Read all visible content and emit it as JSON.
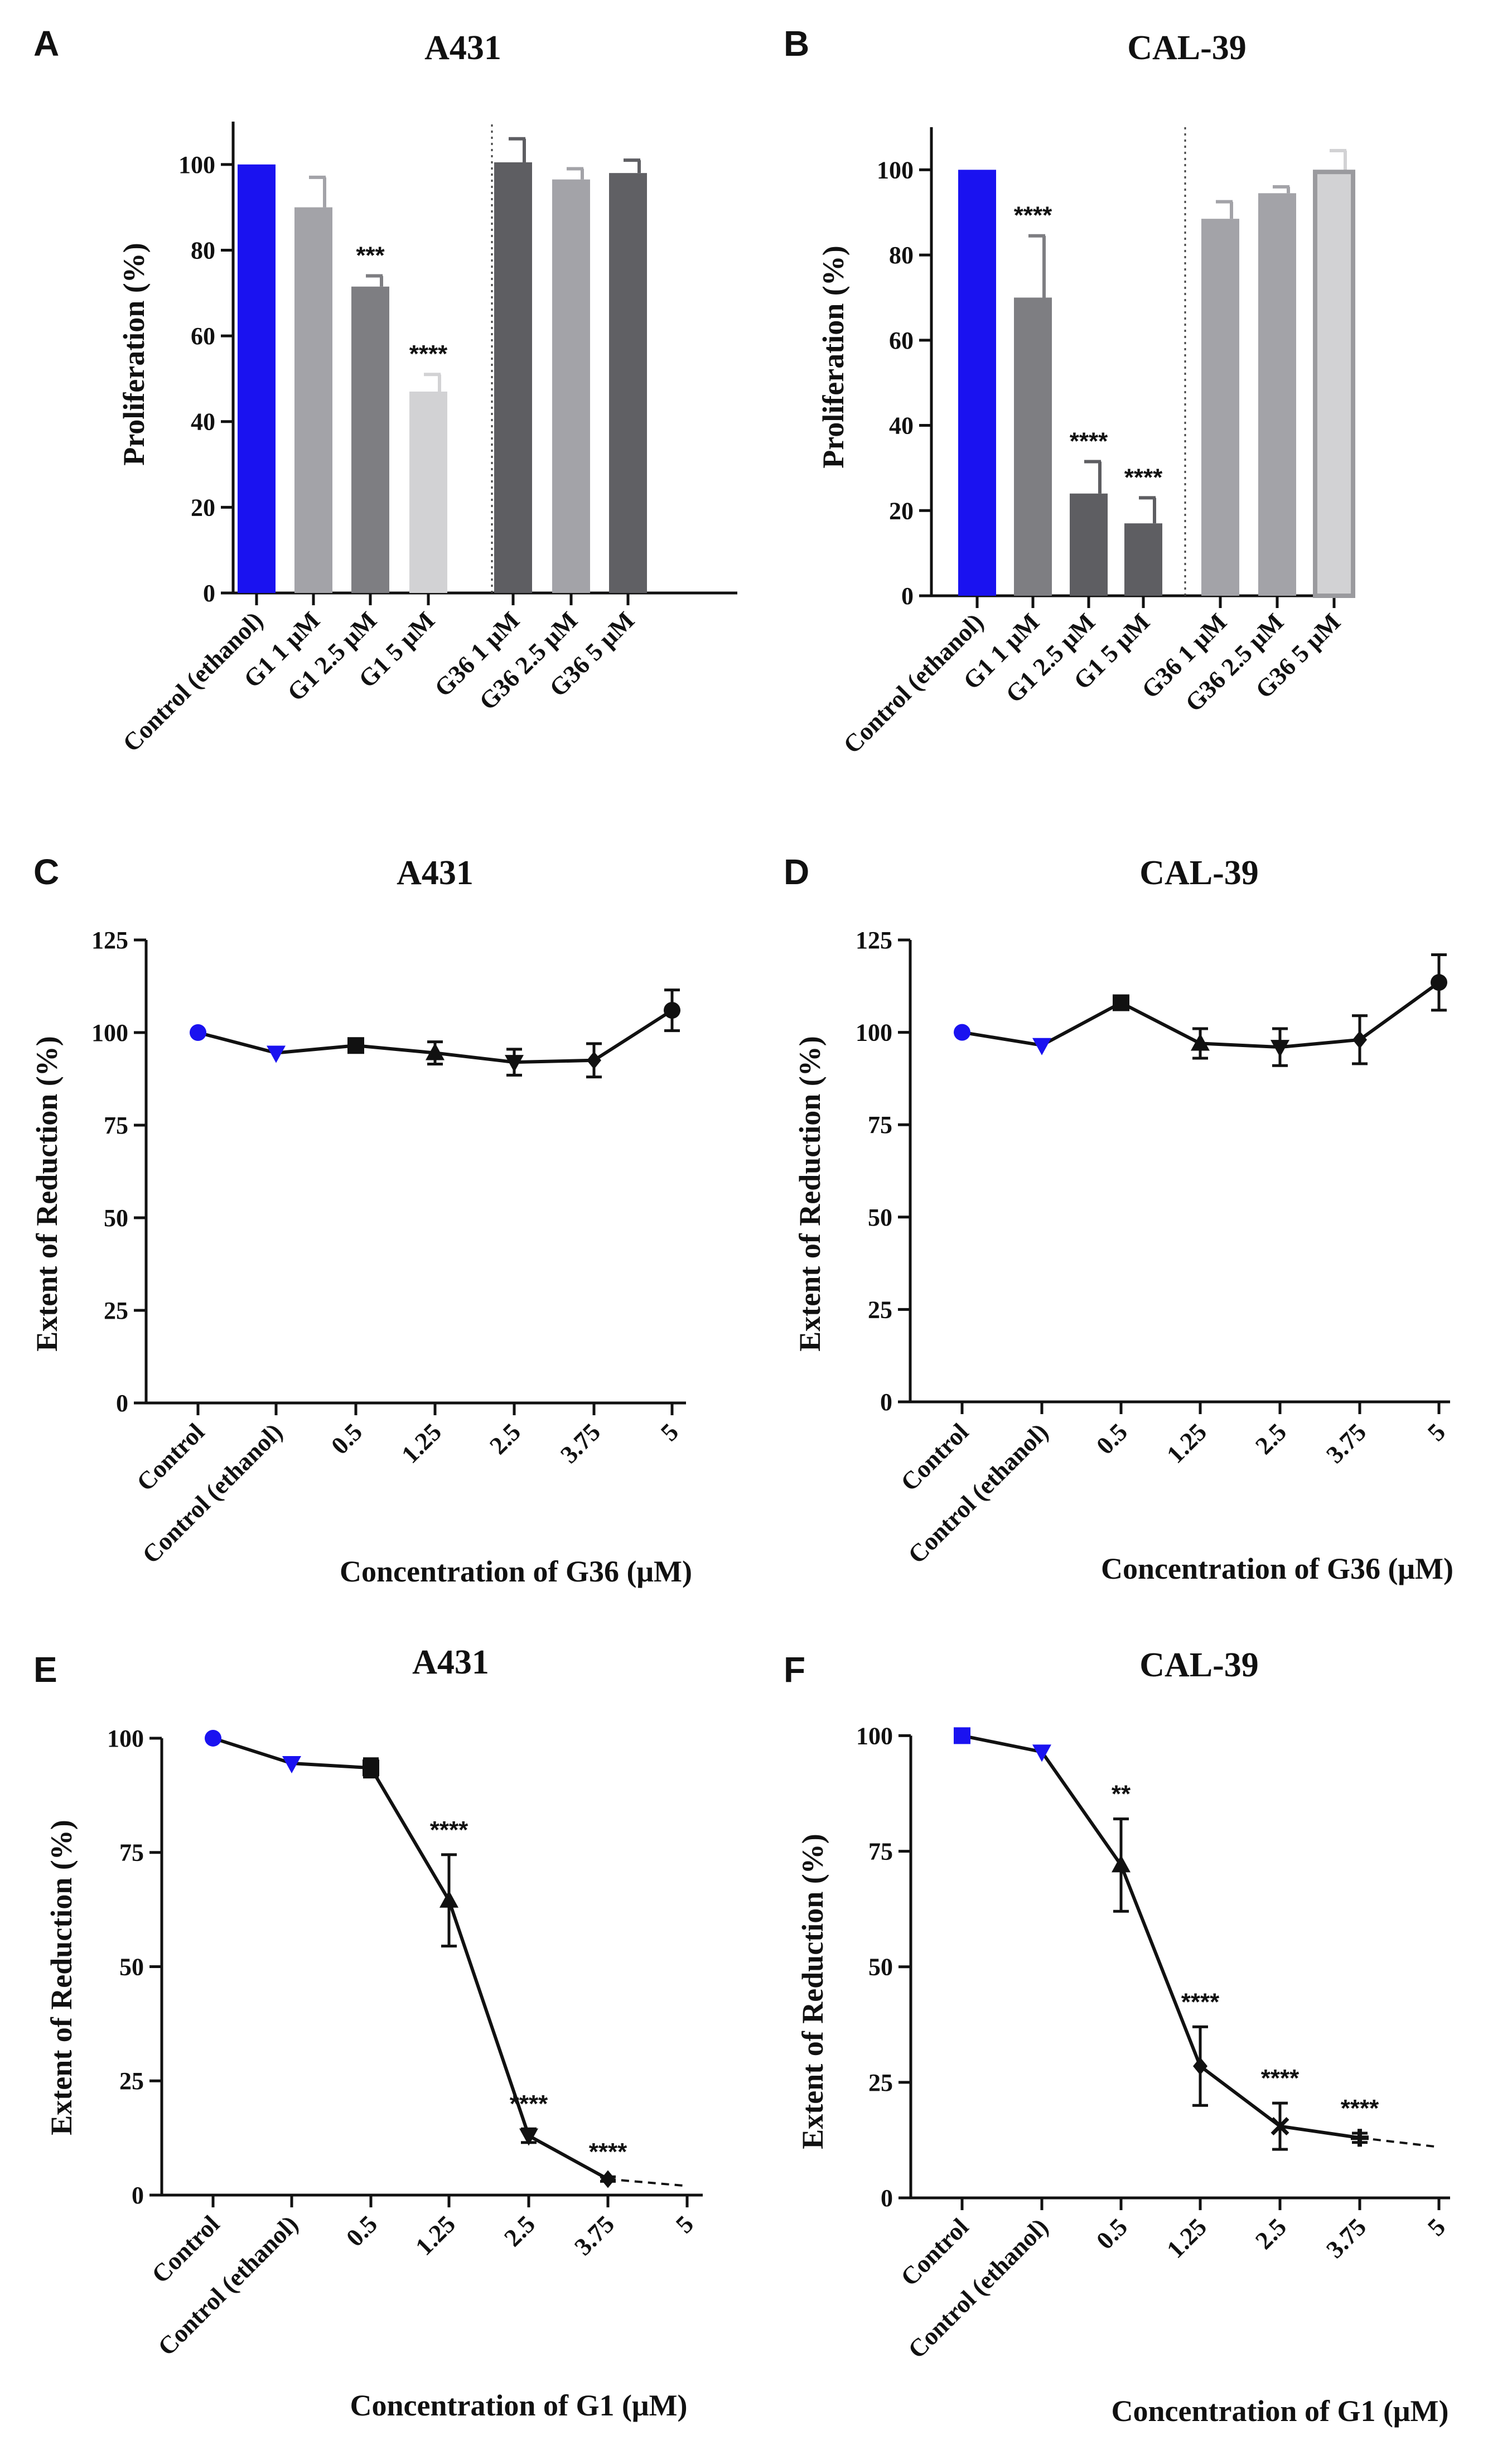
{
  "panel_letters": [
    "A",
    "B",
    "C",
    "D",
    "E",
    "F"
  ],
  "chart_data": [
    {
      "id": "A",
      "type": "bar",
      "title": "A431",
      "xlabel": "",
      "ylabel": "Proliferation (%)",
      "ylim": [
        0,
        110
      ],
      "yticks": [
        0,
        20,
        40,
        60,
        80,
        100
      ],
      "categories": [
        "Control (ethanol)",
        "G1 1 μM",
        "G1 2.5 μM",
        "G1 5 μM",
        "G36 1 μM",
        "G36 2.5 μM",
        "G36 5 μM"
      ],
      "values": [
        100,
        90,
        71.5,
        47,
        100.5,
        96.5,
        98
      ],
      "errors": [
        0,
        7,
        2.5,
        4,
        5.5,
        2.5,
        3
      ],
      "colors": [
        "#1a12f0",
        "#a3a3a8",
        "#7e7e82",
        "#d2d2d4",
        "#5e5e62",
        "#a3a3a8",
        "#606064"
      ],
      "significance": [
        "",
        "",
        "***",
        "****",
        "",
        "",
        ""
      ],
      "separator_after_index": 3
    },
    {
      "id": "B",
      "type": "bar",
      "title": "CAL-39",
      "xlabel": "",
      "ylabel": "Proliferation (%)",
      "ylim": [
        0,
        110
      ],
      "yticks": [
        0,
        20,
        40,
        60,
        80,
        100
      ],
      "categories": [
        "Control (ethanol)",
        "G1 1 μM",
        "G1 2.5 μM",
        "G1 5 μM",
        "G36 1 μM",
        "G36 2.5 μM",
        "G36 5 μM"
      ],
      "values": [
        100,
        70,
        24,
        17,
        88.5,
        94.5,
        99.5
      ],
      "errors": [
        0,
        14.5,
        7.5,
        6,
        4,
        1.5,
        5
      ],
      "colors": [
        "#1a12f0",
        "#7e7e82",
        "#5e5e62",
        "#5e5e62",
        "#a3a3a8",
        "#a3a3a8",
        "#d2d2d4"
      ],
      "significance": [
        "",
        "****",
        "****",
        "****",
        "",
        "",
        ""
      ],
      "separator_after_index": 3
    },
    {
      "id": "C",
      "type": "line",
      "title": "A431",
      "xlabel": "Concentration of G36 (μM)",
      "ylabel": "Extent of Reduction (%)",
      "ylim": [
        0,
        125
      ],
      "yticks": [
        0,
        25,
        50,
        75,
        100,
        125
      ],
      "categories": [
        "Control",
        "Control (ethanol)",
        "0.5",
        "1.25",
        "2.5",
        "3.75",
        "5"
      ],
      "values": [
        100,
        94.5,
        96.5,
        94.5,
        92,
        92.5,
        106
      ],
      "errors": [
        0,
        0,
        1.5,
        3,
        3.5,
        4.5,
        5.5
      ],
      "markers": [
        "circle",
        "triangle-down",
        "square",
        "triangle-up",
        "triangle-down",
        "diamond",
        "circle"
      ],
      "colors": [
        "#1a12f0",
        "#1a12f0",
        "#111111",
        "#111111",
        "#111111",
        "#111111",
        "#111111"
      ],
      "significance": [
        "",
        "",
        "",
        "",
        "",
        "",
        ""
      ],
      "dashed_tail": null
    },
    {
      "id": "D",
      "type": "line",
      "title": "CAL-39",
      "xlabel": "Concentration of G36 (μM)",
      "ylabel": "Extent of Reduction (%)",
      "ylim": [
        0,
        125
      ],
      "yticks": [
        0,
        25,
        50,
        75,
        100,
        125
      ],
      "categories": [
        "Control",
        "Control (ethanol)",
        "0.5",
        "1.25",
        "2.5",
        "3.75",
        "5"
      ],
      "values": [
        100,
        96.5,
        108,
        97,
        96,
        98,
        113.5
      ],
      "errors": [
        0,
        0,
        1.5,
        4,
        5,
        6.5,
        7.5
      ],
      "markers": [
        "circle",
        "triangle-down",
        "square",
        "triangle-up",
        "triangle-down",
        "diamond",
        "circle"
      ],
      "colors": [
        "#1a12f0",
        "#1a12f0",
        "#111111",
        "#111111",
        "#111111",
        "#111111",
        "#111111"
      ],
      "significance": [
        "",
        "",
        "",
        "",
        "",
        "",
        ""
      ],
      "dashed_tail": null
    },
    {
      "id": "E",
      "type": "line",
      "title": "A431",
      "xlabel": "Concentration of G1 (μM)",
      "ylabel": "Extent of Reduction (%)",
      "ylim": [
        0,
        105
      ],
      "yticks": [
        0,
        25,
        50,
        75,
        100
      ],
      "categories": [
        "Control",
        "Control (ethanol)",
        "0.5",
        "1.25",
        "2.5",
        "3.75",
        "5"
      ],
      "values": [
        100,
        94.5,
        93.5,
        64.5,
        13,
        3.5,
        null
      ],
      "errors": [
        0,
        0,
        2,
        10,
        1.5,
        0.5,
        0
      ],
      "markers": [
        "circle",
        "triangle-down",
        "square",
        "triangle-up",
        "triangle-down",
        "diamond",
        "none"
      ],
      "colors": [
        "#1a12f0",
        "#1a12f0",
        "#111111",
        "#111111",
        "#111111",
        "#111111",
        "#111111"
      ],
      "significance": [
        "",
        "",
        "",
        "****",
        "****",
        "****",
        ""
      ],
      "dashed_tail": [
        3.5,
        2
      ]
    },
    {
      "id": "F",
      "type": "line",
      "title": "CAL-39",
      "xlabel": "Concentration of G1 (μM)",
      "ylabel": "Extent of Reduction (%)",
      "ylim": [
        0,
        105
      ],
      "yticks": [
        0,
        25,
        50,
        75,
        100
      ],
      "categories": [
        "Control",
        "Control (ethanol)",
        "0.5",
        "1.25",
        "2.5",
        "3.75",
        "5"
      ],
      "values": [
        100,
        96.5,
        72,
        28.5,
        15.5,
        13,
        null
      ],
      "errors": [
        0,
        0,
        10,
        8.5,
        5,
        1,
        0
      ],
      "markers": [
        "square",
        "triangle-down",
        "triangle-up",
        "diamond",
        "x",
        "plus",
        "none"
      ],
      "colors": [
        "#1a12f0",
        "#1a12f0",
        "#111111",
        "#111111",
        "#111111",
        "#111111",
        "#111111"
      ],
      "significance": [
        "",
        "",
        "**",
        "****",
        "****",
        "****",
        ""
      ],
      "dashed_tail": [
        13,
        11
      ]
    }
  ]
}
